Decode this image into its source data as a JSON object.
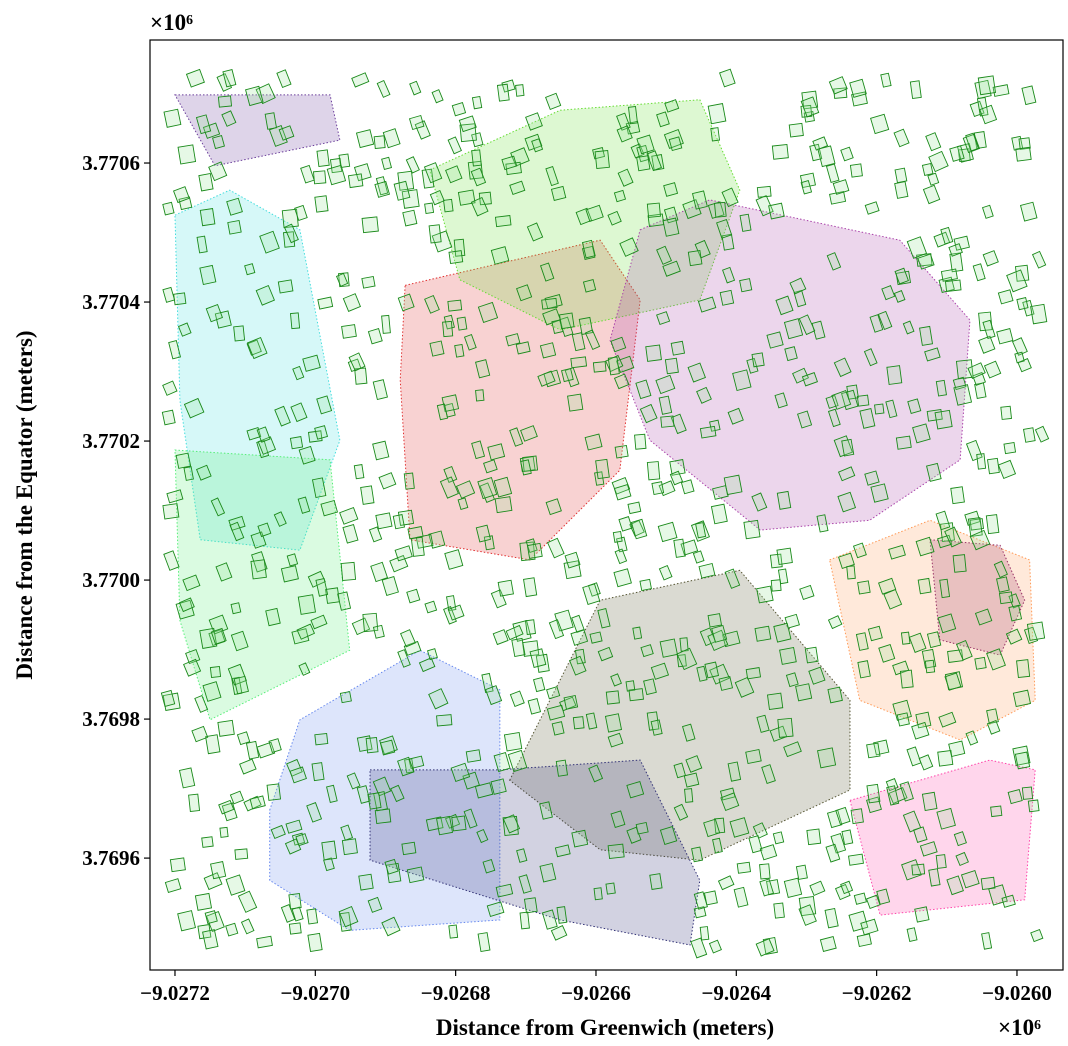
{
  "chart_data": {
    "type": "polygon",
    "xlabel": "Distance from Greenwich (meters)",
    "ylabel": "Distance from the Equator (meters)",
    "x_offset_label": "×10⁶",
    "y_offset_label": "×10⁶",
    "xlim": [
      -9.0272356,
      -9.0259344
    ],
    "ylim": [
      3.769439,
      3.770777
    ],
    "xticks": [
      {
        "value": -9.0272,
        "label": "−9.0272"
      },
      {
        "value": -9.027,
        "label": "−9.0270"
      },
      {
        "value": -9.0268,
        "label": "−9.0268"
      },
      {
        "value": -9.0266,
        "label": "−9.0266"
      },
      {
        "value": -9.0264,
        "label": "−9.0264"
      },
      {
        "value": -9.0262,
        "label": "−9.0262"
      },
      {
        "value": -9.026,
        "label": "−9.0260"
      }
    ],
    "yticks": [
      3.7696,
      3.7698,
      {
        "value": 3.77,
        "label": "3.7700"
      },
      3.7702,
      3.7704,
      3.7706
    ],
    "clusters": [
      {
        "color": "#e03030",
        "x": [
          -9.026872,
          -9.026594,
          -9.026537,
          -9.026566,
          -9.026694,
          -9.026865,
          -9.026879
        ],
        "y": [
          3.770424,
          3.770489,
          3.770403,
          3.770158,
          3.770029,
          3.770058,
          3.770288
        ]
      },
      {
        "color": "#6a3d9a",
        "x": [
          -9.0272,
          -9.026979,
          -9.026965,
          -9.027143
        ],
        "y": [
          3.770698,
          3.770698,
          3.770633,
          3.770596
        ]
      },
      {
        "color": "#66dd33",
        "x": [
          -9.026837,
          -9.026651,
          -9.026452,
          -9.026395,
          -9.026452,
          -9.026651,
          -9.026794
        ],
        "y": [
          3.77059,
          3.770676,
          3.770691,
          3.770561,
          3.770403,
          3.77036,
          3.770432
        ]
      },
      {
        "color": "#aa44aa",
        "x": [
          -9.026537,
          -9.026438,
          -9.026167,
          -9.026067,
          -9.026081,
          -9.02621,
          -9.026366,
          -9.026523,
          -9.02658
        ],
        "y": [
          3.770504,
          3.770547,
          3.770489,
          3.770374,
          3.770173,
          3.770086,
          3.770072,
          3.770201,
          3.770345
        ]
      },
      {
        "color": "#555533",
        "x": [
          -9.026723,
          -9.026594,
          -9.026395,
          -9.026238,
          -9.026238,
          -9.026452,
          -9.026594
        ],
        "y": [
          3.769712,
          3.769971,
          3.770014,
          3.769827,
          3.769698,
          3.769597,
          3.769612
        ]
      },
      {
        "color": "#6688ee",
        "x": [
          -9.027065,
          -9.027022,
          -9.026851,
          -9.026737,
          -9.026737,
          -9.026951,
          -9.027065
        ],
        "y": [
          3.769669,
          3.769799,
          3.769899,
          3.769842,
          3.769511,
          3.769496,
          3.769568
        ]
      },
      {
        "color": "#333377",
        "x": [
          -9.026922,
          -9.026737,
          -9.026537,
          -9.026452,
          -9.026466,
          -9.026651,
          -9.026922
        ],
        "y": [
          3.769727,
          3.769727,
          3.769741,
          3.769568,
          3.769475,
          3.769511,
          3.769597
        ]
      },
      {
        "color": "#44dddd",
        "x": [
          -9.0272,
          -9.027122,
          -9.027022,
          -9.026965,
          -9.027022,
          -9.027164,
          -9.027193
        ],
        "y": [
          3.770525,
          3.770561,
          3.770504,
          3.770201,
          3.770043,
          3.770058,
          3.770259
        ]
      },
      {
        "color": "#ff9955",
        "x": [
          -9.026267,
          -9.026124,
          -9.025982,
          -9.025974,
          -9.026081,
          -9.026224
        ],
        "y": [
          3.770029,
          3.770086,
          3.770029,
          3.769827,
          3.76977,
          3.769827
        ]
      },
      {
        "color": "#ff44aa",
        "x": [
          -9.026238,
          -9.026039,
          -9.025974,
          -9.025989,
          -9.026195
        ],
        "y": [
          3.769683,
          3.769741,
          3.769727,
          3.76954,
          3.769518
        ]
      },
      {
        "color": "#55ee77",
        "x": [
          -9.0272,
          -9.026979,
          -9.026951,
          -9.02715,
          -9.027193
        ],
        "y": [
          3.770187,
          3.770173,
          3.769899,
          3.769799,
          3.769942
        ]
      },
      {
        "color": "#993366",
        "x": [
          -9.026124,
          -9.026024,
          -9.025989,
          -9.026024,
          -9.02611
        ],
        "y": [
          3.770058,
          3.77005,
          3.769971,
          3.769892,
          3.769914
        ]
      }
    ]
  }
}
